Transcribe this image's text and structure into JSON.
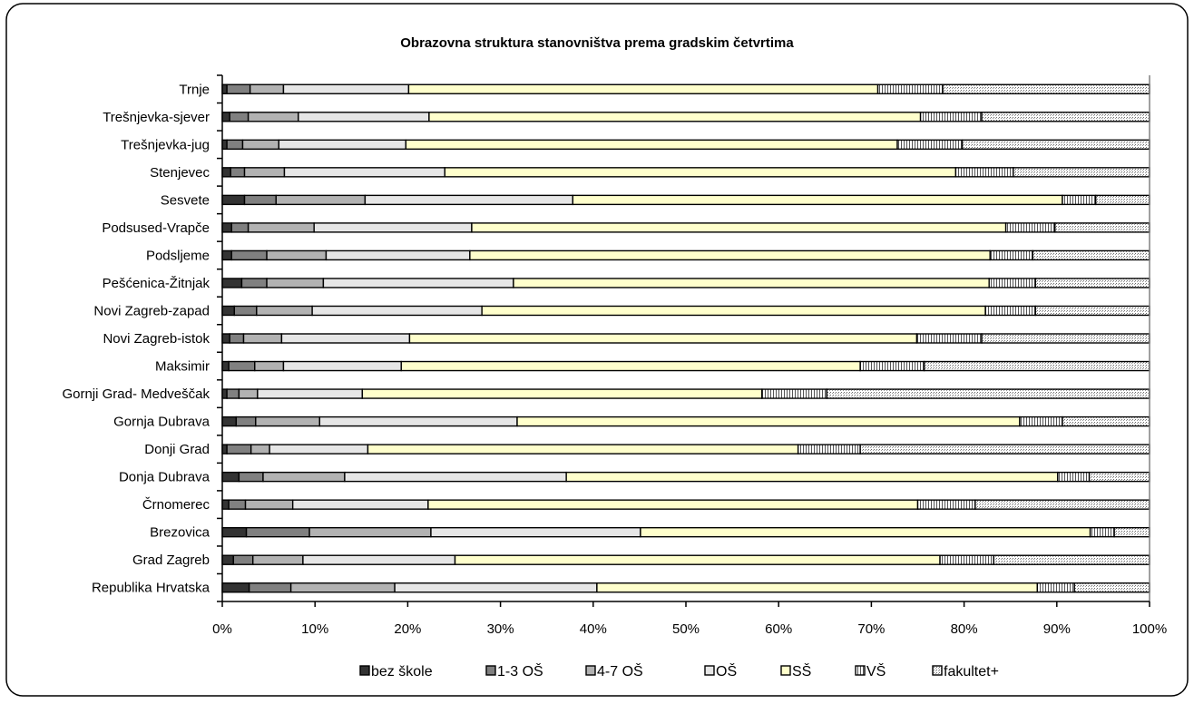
{
  "chart_data": {
    "type": "bar",
    "orientation": "horizontal",
    "stacked": "percent",
    "title": "Obrazovna struktura stanovništva prema gradskim četvrtima",
    "xlabel": "",
    "ylabel": "",
    "xlim": [
      0,
      100
    ],
    "x_ticks": [
      "0%",
      "10%",
      "20%",
      "30%",
      "40%",
      "50%",
      "60%",
      "70%",
      "80%",
      "90%",
      "100%"
    ],
    "grid": false,
    "legend_position": "bottom",
    "categories": [
      "Trnje",
      "Trešnjevka-sjever",
      "Trešnjevka-jug",
      "Stenjevec",
      "Sesvete",
      "Podsused-Vrapče",
      "Podsljeme",
      "Pešćenica-Žitnjak",
      "Novi Zagreb-zapad",
      "Novi Zagreb-istok",
      "Maksimir",
      "Gornji Grad- Medveščak",
      "Gornja Dubrava",
      "Donji Grad",
      "Donja Dubrava",
      "Črnomerec",
      "Brezovica",
      "Grad Zagreb",
      "Republika Hrvatska"
    ],
    "series": [
      {
        "name": "bez škole",
        "color": "#333333",
        "pattern": "solid",
        "values": [
          0.5,
          0.8,
          0.5,
          0.9,
          2.4,
          1.0,
          1.0,
          2.1,
          1.3,
          0.8,
          0.7,
          0.5,
          1.5,
          0.5,
          1.8,
          0.7,
          2.6,
          1.2,
          2.9
        ]
      },
      {
        "name": "1-3 OŠ",
        "color": "#808080",
        "pattern": "solid",
        "values": [
          2.5,
          2.0,
          1.7,
          1.5,
          3.4,
          1.8,
          3.8,
          2.7,
          2.4,
          1.5,
          2.8,
          1.3,
          2.1,
          2.6,
          2.6,
          1.8,
          6.8,
          2.1,
          4.5
        ]
      },
      {
        "name": "4-7 OŠ",
        "color": "#b2b2b2",
        "pattern": "solid",
        "values": [
          3.6,
          5.4,
          3.9,
          4.3,
          9.6,
          7.1,
          6.4,
          6.1,
          6.0,
          4.1,
          3.1,
          2.0,
          6.9,
          2.0,
          8.8,
          5.1,
          13.1,
          5.4,
          11.2
        ]
      },
      {
        "name": "OŠ",
        "color": "#e6e6e6",
        "pattern": "solid",
        "values": [
          13.5,
          14.1,
          13.7,
          17.3,
          22.4,
          17.0,
          15.5,
          20.5,
          18.3,
          13.8,
          12.7,
          11.3,
          21.3,
          10.6,
          23.9,
          14.6,
          22.6,
          16.4,
          21.8
        ]
      },
      {
        "name": "SŠ",
        "color": "#ffffcc",
        "pattern": "solid",
        "values": [
          50.6,
          53.0,
          53.0,
          55.1,
          52.8,
          57.6,
          56.1,
          51.3,
          54.3,
          54.7,
          49.5,
          43.1,
          54.2,
          46.4,
          53.0,
          52.8,
          48.5,
          52.3,
          47.5
        ]
      },
      {
        "name": "VŠ",
        "color": "#ffffff",
        "pattern": "vlines",
        "values": [
          7.0,
          6.6,
          7.0,
          6.2,
          3.6,
          5.3,
          4.6,
          5.0,
          5.4,
          7.0,
          6.9,
          7.0,
          4.6,
          6.7,
          3.4,
          6.2,
          2.6,
          5.8,
          4.0
        ]
      },
      {
        "name": "fakultet+",
        "color": "#ffffff",
        "pattern": "dots",
        "values": [
          22.3,
          18.1,
          20.2,
          14.7,
          5.8,
          10.2,
          12.6,
          12.3,
          12.3,
          18.1,
          24.3,
          34.8,
          9.4,
          31.2,
          6.5,
          18.8,
          3.8,
          16.8,
          8.1
        ]
      }
    ]
  }
}
